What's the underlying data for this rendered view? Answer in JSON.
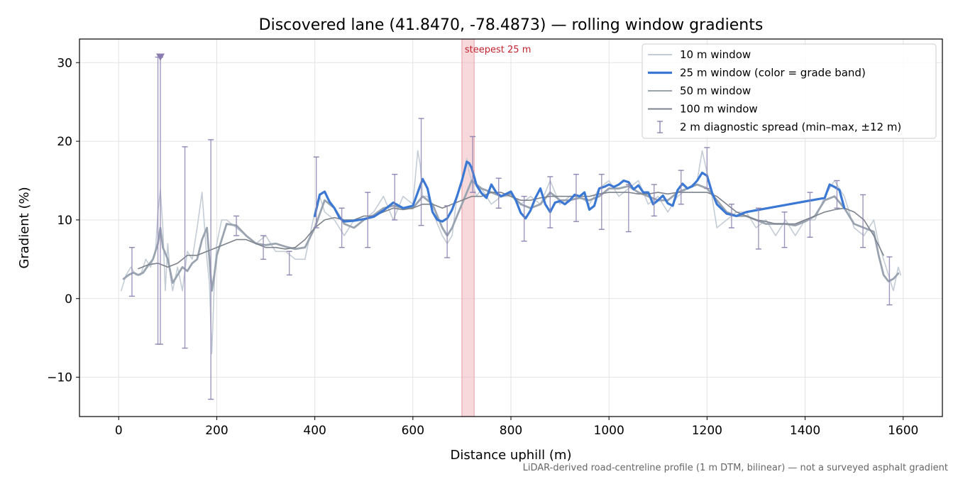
{
  "chart_data": {
    "type": "line",
    "title": "Discovered lane (41.8470, -78.4873) — rolling window gradients",
    "xlabel": "Distance uphill (m)",
    "ylabel": "Gradient (%)",
    "xlim": [
      -80,
      1680
    ],
    "ylim": [
      -15,
      33
    ],
    "xticks": [
      0,
      200,
      400,
      600,
      800,
      1000,
      1200,
      1400,
      1600
    ],
    "yticks": [
      -10,
      0,
      10,
      20,
      30
    ],
    "xtick_labels": [
      "0",
      "200",
      "400",
      "600",
      "800",
      "1000",
      "1200",
      "1400",
      "1600"
    ],
    "ytick_labels": [
      "−10",
      "0",
      "10",
      "20",
      "30"
    ],
    "grid": true,
    "legend_position": "top-right",
    "colors": {
      "w10": "#c4ccd6",
      "w25_band": "#3a78d4",
      "w50": "#9aa4b0",
      "w100": "#7d838c",
      "diagnostic": "#8f86b3",
      "highlight_fill": "#f0b8bd",
      "highlight_text": "#c0222e"
    },
    "highlight": {
      "label": "steepest 25 m",
      "x_range": [
        700,
        725
      ]
    },
    "series": [
      {
        "name": "10 m window",
        "x": [
          5,
          15,
          25,
          35,
          45,
          55,
          65,
          75,
          80,
          85,
          90,
          95,
          100,
          105,
          110,
          120,
          130,
          140,
          150,
          160,
          170,
          180,
          185,
          190,
          195,
          200,
          210,
          220,
          240,
          260,
          280,
          300,
          320,
          340,
          360,
          380,
          400,
          410,
          420,
          440,
          460,
          480,
          500,
          520,
          540,
          560,
          580,
          600,
          610,
          615,
          620,
          630,
          640,
          660,
          670,
          680,
          690,
          700,
          710,
          715,
          720,
          730,
          740,
          760,
          780,
          800,
          820,
          840,
          860,
          880,
          900,
          920,
          940,
          960,
          980,
          1000,
          1020,
          1040,
          1060,
          1080,
          1100,
          1120,
          1140,
          1160,
          1180,
          1190,
          1200,
          1210,
          1220,
          1240,
          1260,
          1280,
          1300,
          1320,
          1340,
          1360,
          1380,
          1400,
          1420,
          1440,
          1460,
          1480,
          1500,
          1520,
          1540,
          1550,
          1560,
          1570,
          1580,
          1590,
          1595
        ],
        "values": [
          1,
          3,
          4,
          3,
          3,
          5,
          4,
          6,
          11,
          13.8,
          9,
          1,
          7,
          3,
          1,
          4,
          1,
          6,
          5,
          9,
          13.5,
          5,
          2,
          -7,
          2,
          7,
          10,
          10,
          9,
          8,
          7,
          8,
          6,
          6,
          5,
          5,
          11,
          13,
          11,
          10,
          8,
          10,
          10,
          11,
          13,
          10,
          13,
          12,
          18.8,
          17,
          13,
          13,
          11,
          8,
          7,
          8,
          13,
          15,
          17.8,
          16,
          15,
          13,
          14,
          12,
          13,
          13,
          12,
          13,
          12,
          15,
          12,
          13,
          13,
          12,
          14,
          15,
          13,
          14,
          15,
          12,
          13,
          11,
          13,
          14,
          15,
          18.8,
          16,
          13,
          9,
          10,
          11,
          11,
          9,
          10,
          8,
          10,
          8,
          10,
          10,
          13,
          15,
          13,
          9,
          8,
          10,
          7,
          5,
          3,
          1,
          4,
          3
        ]
      },
      {
        "name": "25 m window (color = grade band)",
        "x": [
          400,
          410,
          420,
          430,
          440,
          450,
          460,
          480,
          500,
          520,
          540,
          560,
          580,
          600,
          610,
          620,
          630,
          640,
          650,
          660,
          670,
          680,
          690,
          700,
          710,
          715,
          720,
          730,
          740,
          750,
          760,
          770,
          780,
          790,
          800,
          810,
          820,
          830,
          840,
          850,
          860,
          870,
          880,
          890,
          900,
          910,
          920,
          930,
          940,
          950,
          960,
          970,
          980,
          990,
          1000,
          1010,
          1020,
          1030,
          1040,
          1050,
          1060,
          1070,
          1080,
          1090,
          1100,
          1110,
          1120,
          1130,
          1140,
          1150,
          1160,
          1170,
          1180,
          1190,
          1200,
          1210,
          1220,
          1240,
          1260,
          1280,
          1440,
          1450,
          1460,
          1470,
          1480
        ],
        "values": [
          10.5,
          13.2,
          13.6,
          12.3,
          11.5,
          10.3,
          9.8,
          9.9,
          10.1,
          10.4,
          11.2,
          12.2,
          11.5,
          11.8,
          13.5,
          15.2,
          14.0,
          11.0,
          10.0,
          9.8,
          10.2,
          11.3,
          13.0,
          15.0,
          17.4,
          17.2,
          16.6,
          14.4,
          13.4,
          12.8,
          14.5,
          13.5,
          13.0,
          13.3,
          13.6,
          12.5,
          10.9,
          10.2,
          11.2,
          12.8,
          14.0,
          12.0,
          11.0,
          12.2,
          12.4,
          12.0,
          12.5,
          13.2,
          13.0,
          13.5,
          11.3,
          11.8,
          14.0,
          14.2,
          14.5,
          14.2,
          14.5,
          15.0,
          14.8,
          13.9,
          14.4,
          13.5,
          13.5,
          12.0,
          12.5,
          13.1,
          12.1,
          11.8,
          13.8,
          14.6,
          14.0,
          14.3,
          15.0,
          16.0,
          15.6,
          13.5,
          12.0,
          10.8,
          10.5,
          11.0,
          12.8,
          14.5,
          14.2,
          13.8,
          11.5
        ]
      },
      {
        "name": "50 m window",
        "x": [
          10,
          20,
          30,
          40,
          50,
          60,
          70,
          80,
          85,
          90,
          100,
          110,
          120,
          130,
          140,
          150,
          160,
          170,
          180,
          185,
          190,
          195,
          200,
          220,
          240,
          260,
          280,
          300,
          320,
          340,
          360,
          380,
          400,
          420,
          440,
          460,
          480,
          500,
          520,
          540,
          560,
          580,
          600,
          620,
          640,
          660,
          670,
          680,
          700,
          720,
          740,
          760,
          780,
          800,
          820,
          840,
          860,
          880,
          900,
          920,
          940,
          960,
          980,
          1000,
          1020,
          1040,
          1060,
          1080,
          1100,
          1120,
          1140,
          1160,
          1180,
          1200,
          1220,
          1240,
          1260,
          1280,
          1300,
          1320,
          1340,
          1360,
          1380,
          1400,
          1420,
          1440,
          1460,
          1480,
          1500,
          1520,
          1540,
          1550,
          1560,
          1570,
          1580,
          1590
        ],
        "values": [
          2.5,
          3.0,
          3.3,
          3.0,
          3.3,
          4.2,
          5.0,
          7.0,
          9.0,
          6.5,
          5.0,
          2.0,
          3.0,
          4.0,
          3.5,
          4.5,
          5.0,
          7.5,
          9.0,
          5.0,
          1.0,
          3.0,
          5.5,
          9.5,
          9.3,
          8.0,
          7.0,
          6.8,
          7.0,
          6.6,
          6.3,
          6.5,
          9.0,
          12.5,
          11.5,
          9.5,
          9.0,
          10.0,
          10.6,
          11.5,
          11.8,
          11.5,
          11.5,
          13.0,
          12.0,
          9.0,
          8.0,
          9.0,
          12.0,
          15.0,
          14.0,
          13.5,
          13.0,
          13.3,
          12.0,
          11.5,
          12.0,
          13.5,
          12.5,
          12.5,
          12.8,
          12.5,
          13.0,
          14.0,
          14.0,
          14.3,
          13.5,
          13.0,
          12.5,
          12.5,
          13.5,
          14.0,
          14.5,
          14.0,
          12.5,
          11.0,
          10.5,
          10.5,
          10.0,
          9.5,
          9.5,
          9.5,
          9.3,
          9.8,
          10.5,
          12.5,
          13.0,
          11.5,
          9.5,
          9.0,
          8.5,
          5.5,
          3.0,
          2.2,
          2.5,
          3.2
        ]
      },
      {
        "name": "100 m window",
        "x": [
          40,
          60,
          80,
          100,
          120,
          140,
          160,
          180,
          200,
          220,
          240,
          260,
          280,
          300,
          320,
          340,
          360,
          380,
          400,
          420,
          440,
          460,
          480,
          500,
          520,
          540,
          560,
          580,
          600,
          620,
          640,
          660,
          680,
          700,
          720,
          740,
          760,
          780,
          800,
          820,
          840,
          860,
          880,
          900,
          920,
          940,
          960,
          980,
          1000,
          1020,
          1040,
          1060,
          1080,
          1100,
          1120,
          1140,
          1160,
          1180,
          1200,
          1220,
          1240,
          1260,
          1280,
          1300,
          1320,
          1340,
          1360,
          1380,
          1400,
          1420,
          1440,
          1460,
          1480,
          1500,
          1520,
          1540,
          1560
        ],
        "values": [
          3.8,
          4.3,
          4.5,
          4.0,
          4.5,
          5.5,
          5.5,
          6.0,
          6.5,
          7.0,
          7.5,
          7.5,
          7.0,
          6.5,
          6.5,
          6.3,
          6.5,
          7.5,
          9.0,
          10.0,
          10.3,
          10.0,
          10.0,
          10.5,
          10.5,
          11.0,
          11.5,
          11.3,
          11.5,
          12.0,
          12.0,
          11.5,
          12.0,
          12.5,
          13.0,
          13.0,
          13.5,
          13.5,
          13.0,
          12.5,
          12.5,
          12.8,
          13.0,
          13.0,
          13.0,
          13.0,
          13.0,
          13.3,
          13.5,
          13.5,
          13.5,
          13.3,
          13.3,
          13.5,
          13.3,
          13.5,
          13.5,
          13.5,
          13.5,
          13.0,
          12.0,
          11.0,
          10.5,
          10.0,
          9.8,
          9.5,
          9.5,
          9.5,
          10.0,
          10.5,
          11.0,
          11.3,
          11.5,
          11.0,
          10.0,
          8.0,
          5.5
        ]
      }
    ],
    "diagnostic_spread": {
      "name": "2 m diagnostic spread (min–max, ±12 m)",
      "bars": [
        {
          "x": 27,
          "min": 0.3,
          "max": 6.5
        },
        {
          "x": 80,
          "min": -5.8,
          "max": 30.7
        },
        {
          "x": 85,
          "min": -5.8,
          "max": 30.7
        },
        {
          "x": 135,
          "min": -6.3,
          "max": 19.3
        },
        {
          "x": 188,
          "min": -12.8,
          "max": 20.2
        },
        {
          "x": 240,
          "min": 8.0,
          "max": 10.5
        },
        {
          "x": 295,
          "min": 5.0,
          "max": 8.0
        },
        {
          "x": 348,
          "min": 3.0,
          "max": 6.0
        },
        {
          "x": 403,
          "min": 9.0,
          "max": 18.0
        },
        {
          "x": 455,
          "min": 6.5,
          "max": 11.5
        },
        {
          "x": 508,
          "min": 6.5,
          "max": 13.5
        },
        {
          "x": 563,
          "min": 10.0,
          "max": 15.8
        },
        {
          "x": 617,
          "min": 9.3,
          "max": 22.9
        },
        {
          "x": 670,
          "min": 5.2,
          "max": 11.8
        },
        {
          "x": 722,
          "min": 13.5,
          "max": 20.6
        },
        {
          "x": 775,
          "min": 11.5,
          "max": 15.3
        },
        {
          "x": 827,
          "min": 7.3,
          "max": 13.0
        },
        {
          "x": 880,
          "min": 9.0,
          "max": 15.5
        },
        {
          "x": 933,
          "min": 9.8,
          "max": 15.8
        },
        {
          "x": 985,
          "min": 8.8,
          "max": 15.8
        },
        {
          "x": 1040,
          "min": 8.5,
          "max": 14.5
        },
        {
          "x": 1092,
          "min": 10.5,
          "max": 14.5
        },
        {
          "x": 1147,
          "min": 12.0,
          "max": 16.3
        },
        {
          "x": 1200,
          "min": 14.0,
          "max": 19.2
        },
        {
          "x": 1250,
          "min": 9.0,
          "max": 12.0
        },
        {
          "x": 1305,
          "min": 6.3,
          "max": 11.5
        },
        {
          "x": 1358,
          "min": 6.5,
          "max": 11.0
        },
        {
          "x": 1410,
          "min": 7.8,
          "max": 13.5
        },
        {
          "x": 1465,
          "min": 11.5,
          "max": 15.0
        },
        {
          "x": 1518,
          "min": 6.5,
          "max": 13.2
        },
        {
          "x": 1572,
          "min": -0.8,
          "max": 5.3
        }
      ]
    },
    "marker": {
      "x": 85,
      "y": 30.7
    }
  },
  "footnote": "LiDAR-derived road-centreline profile (1 m DTM, bilinear) — not a surveyed asphalt gradient"
}
